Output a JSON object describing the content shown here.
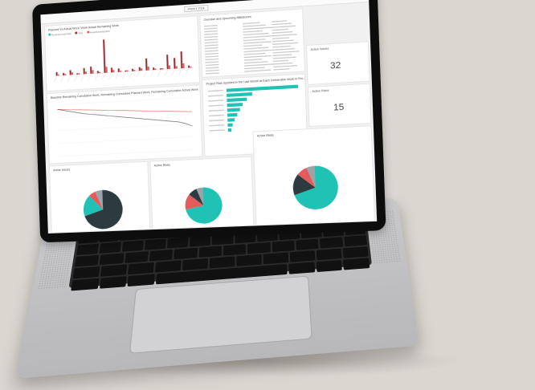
{
  "window": {
    "title": "PRINT PDF",
    "menu_dots": "• • •"
  },
  "tiles": {
    "bar_title": "Planned Vs Actual Work, Work Actual Remaining Work",
    "legend": [
      "Remaining Actual Work",
      "Work",
      "Actual Remaining Work"
    ],
    "burn_title": "Baseline Remaining Cumulative Work, Remaining Cumulative Planned Work, Remaining Cumulative Actual Work",
    "table_title": "Overdue and Upcoming Milestones",
    "hbar_title": "Project Risk Updated in the Last Month at Each Deliverable Work in Pro...",
    "kpi1_label": "Active Issues",
    "kpi1_value": "32",
    "kpi2_label": "Active Risks",
    "kpi2_value": "15",
    "pie1_title": "Active Issues",
    "pie2_title": "Active Risks",
    "pie3_title": "Active Risks"
  },
  "colors": {
    "teal": "#1fc2b4",
    "dark": "#2d3a40",
    "red": "#e35b5b",
    "maroon": "#9a2f33",
    "gray": "#9aa5aa"
  },
  "chart_data": [
    {
      "type": "bar",
      "categories": [
        "1",
        "2",
        "3",
        "4",
        "5",
        "6",
        "7",
        "8",
        "9",
        "10",
        "11",
        "12",
        "13",
        "14",
        "15",
        "16",
        "17",
        "18",
        "19",
        "20"
      ],
      "series": [
        {
          "name": "Work",
          "values": [
            3,
            2,
            4,
            1,
            5,
            6,
            2,
            28,
            4,
            3,
            1,
            2,
            3,
            10,
            2,
            1,
            12,
            9,
            14,
            2
          ]
        },
        {
          "name": "Actual Remaining Work",
          "values": [
            1,
            1,
            2,
            1,
            2,
            3,
            1,
            5,
            2,
            1,
            1,
            1,
            2,
            3,
            1,
            1,
            3,
            2,
            4,
            1
          ]
        }
      ],
      "ylim": [
        0,
        30
      ]
    },
    {
      "type": "line",
      "x": [
        0,
        1,
        2,
        3,
        4,
        5,
        6,
        7,
        8,
        9,
        10,
        11,
        12,
        13,
        14,
        15,
        16,
        17,
        18,
        19,
        20
      ],
      "series": [
        {
          "values": [
            100,
            99,
            98,
            97,
            96,
            95,
            94,
            93,
            92,
            91,
            90,
            89,
            88,
            87,
            86,
            85,
            84,
            83,
            82,
            81,
            80
          ]
        },
        {
          "values": [
            100,
            97,
            94,
            91,
            88,
            86,
            84,
            82,
            80,
            78,
            76,
            74,
            72,
            70,
            68,
            66,
            64,
            62,
            60,
            56,
            50
          ]
        }
      ],
      "ylim": [
        0,
        110
      ]
    },
    {
      "type": "bar",
      "categories": [
        "a",
        "b",
        "c",
        "d",
        "e",
        "f",
        "g",
        "h",
        "i"
      ],
      "values": [
        100,
        36,
        28,
        22,
        18,
        14,
        10,
        7,
        5
      ],
      "xlim": [
        0,
        100
      ]
    },
    {
      "type": "pie",
      "values": [
        70,
        18,
        6,
        6
      ],
      "colors": [
        "#2d3a40",
        "#1fc2b4",
        "#e35b5b",
        "#9aa5aa"
      ]
    },
    {
      "type": "pie",
      "values": [
        72,
        14,
        8,
        6
      ],
      "colors": [
        "#1fc2b4",
        "#e35b5b",
        "#2d3a40",
        "#9aa5aa"
      ]
    },
    {
      "type": "pie",
      "values": [
        70,
        16,
        8,
        6
      ],
      "colors": [
        "#1fc2b4",
        "#2d3a40",
        "#e35b5b",
        "#9aa5aa"
      ]
    }
  ]
}
